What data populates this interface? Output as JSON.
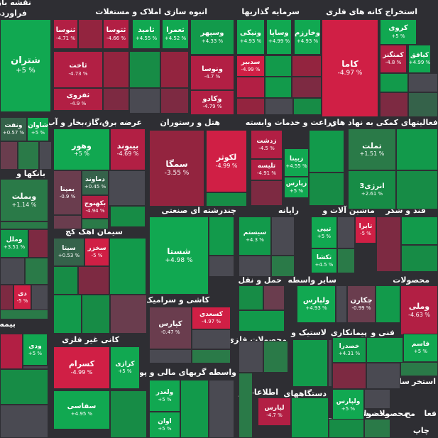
{
  "chart_data": {
    "type": "heatmap",
    "sector_titles": [
      "نقشه بازار",
      "فراورده",
      "استخراج کانه های فلزی",
      "سرمایه گذاریها",
      "انبوه سازی املاک و مستغلات",
      "فعالیتهای کمکی به نهاد های",
      "زراعت و خدمات وابسته",
      "هتل و رستوران",
      "عرضه برق،گاز،بخار و آب گرم",
      "بانکها و",
      "قند و شکر",
      "ماشین آلات و",
      "رایانه",
      "چندرشته ای صنعتی",
      "سیمان آهک گچ",
      "محصولات",
      "سایر واسطه",
      "حمل و نقل",
      "کاشی و سرامیک",
      "خرده",
      "فنی و",
      "پیمانکاری",
      "لاستیک و",
      "محصولات فلزی",
      "کانی غیر فلزی",
      "بیمه",
      "استخر",
      "سایر",
      "مخابرات",
      "وسایل",
      "دستگاههای",
      "اطلاعات و",
      "واسطه گریهای مالی و پولی",
      "محصولا",
      "استخراج",
      "چاپ",
      "فعا",
      "محصولات شیمیایی",
      "مح"
    ],
    "tiles": [
      {
        "symbol": "شتران",
        "change": "+5 %",
        "value": 5
      },
      {
        "symbol": "ثنوسا",
        "change": "-4.71 %",
        "value": -4.71
      },
      {
        "symbol": "ثتوسا",
        "change": "-4.66 %",
        "value": -4.66
      },
      {
        "symbol": "ثامید",
        "change": "+4.55 %",
        "value": 4.55
      },
      {
        "symbol": "ثعمرا",
        "change": "+4.52 %",
        "value": 4.52
      },
      {
        "symbol": "ثاخت",
        "change": "-4.73 %",
        "value": -4.73
      },
      {
        "symbol": "ثفزوی",
        "change": "-4.9 %",
        "value": -4.9
      },
      {
        "symbol": "وسپهر",
        "change": "+4.33 %",
        "value": 4.33
      },
      {
        "symbol": "ونیکی",
        "change": "+4.93 %",
        "value": 4.93
      },
      {
        "symbol": "وساپا",
        "change": "+4.99 %",
        "value": 4.99
      },
      {
        "symbol": "وخارزم",
        "change": "+4.93 %",
        "value": 4.93
      },
      {
        "symbol": "ونوسا",
        "change": "-4.7 %",
        "value": -4.7
      },
      {
        "symbol": "سدبیر",
        "change": "-4.99 %",
        "value": -4.99
      },
      {
        "symbol": "وکادو",
        "change": "-4.79 %",
        "value": -4.79
      },
      {
        "symbol": "کاما",
        "change": "-4.97 %",
        "value": -4.97
      },
      {
        "symbol": "کروی",
        "change": "+5 %",
        "value": 5
      },
      {
        "symbol": "کمنگنز",
        "change": "-4.8 %",
        "value": -4.8
      },
      {
        "symbol": "کیافق",
        "change": "+4.99 %",
        "value": 4.99
      },
      {
        "symbol": "شاوان",
        "change": "+5 %",
        "value": 5
      },
      {
        "symbol": "ونفت",
        "change": "+0.57 %",
        "value": 0.57
      },
      {
        "symbol": "وهور",
        "change": "+5 %",
        "value": 5
      },
      {
        "symbol": "بیبوند",
        "change": "-4.69 %",
        "value": -4.69
      },
      {
        "symbol": "سمگا",
        "change": "-3.55 %",
        "value": -3.55
      },
      {
        "symbol": "لکوثر",
        "change": "-4.99 %",
        "value": -4.99
      },
      {
        "symbol": "زدشت",
        "change": "-4.5 %",
        "value": -4.5
      },
      {
        "symbol": "تلیسه",
        "change": "-4.91 %",
        "value": -4.91
      },
      {
        "symbol": "زبینا",
        "change": "+4.55 %",
        "value": 4.55
      },
      {
        "symbol": "زپارس",
        "change": "+5 %",
        "value": 5
      },
      {
        "symbol": "تملت",
        "change": "+1.51 %",
        "value": 1.51
      },
      {
        "symbol": "انرژی3",
        "change": "+2.61 %",
        "value": 2.61
      },
      {
        "symbol": "دماوند",
        "change": "+0.45 %",
        "value": 0.45
      },
      {
        "symbol": "بمپنا",
        "change": "-0.9 %",
        "value": -0.9
      },
      {
        "symbol": "بکهنوج",
        "change": "-4.94 %",
        "value": -4.94
      },
      {
        "symbol": "وبملت",
        "change": "+1.14 %",
        "value": 1.14
      },
      {
        "symbol": "وملل",
        "change": "+3.51 %",
        "value": 3.51
      },
      {
        "symbol": "شستا",
        "change": "+4.98 %",
        "value": 4.98
      },
      {
        "symbol": "سیستم",
        "change": "+4.3 %",
        "value": 4.3
      },
      {
        "symbol": "تیپی",
        "change": "+5 %",
        "value": 5
      },
      {
        "symbol": "تایرا",
        "change": "-5 %",
        "value": -5
      },
      {
        "symbol": "تکشا",
        "change": "+4.5 %",
        "value": 4.5
      },
      {
        "symbol": "سیتا",
        "change": "+0.53 %",
        "value": 0.53
      },
      {
        "symbol": "سخزر",
        "change": "-5 %",
        "value": -5
      },
      {
        "symbol": "ولپارس",
        "change": "+4.93 %",
        "value": 4.93
      },
      {
        "symbol": "چکارن",
        "change": "-0.99 %",
        "value": -0.99
      },
      {
        "symbol": "وملی",
        "change": "-4.63 %",
        "value": -4.63
      },
      {
        "symbol": "دی",
        "change": "-5 %",
        "value": -5
      },
      {
        "symbol": "کپارس",
        "change": "-0.47 %",
        "value": -0.47
      },
      {
        "symbol": "کسعدی",
        "change": "-4.97 %",
        "value": -4.97
      },
      {
        "symbol": "ودی",
        "change": "+5 %",
        "value": 5
      },
      {
        "symbol": "کسرام",
        "change": "-4.99 %",
        "value": -4.99
      },
      {
        "symbol": "کرازی",
        "change": "+5 %",
        "value": 5
      },
      {
        "symbol": "سفاسی",
        "change": "+4.95 %",
        "value": 4.95
      },
      {
        "symbol": "خصدرا",
        "change": "+4.31 %",
        "value": 4.31
      },
      {
        "symbol": "قاسم",
        "change": "+5 %",
        "value": 5
      },
      {
        "symbol": "ولپارس",
        "change": "+5 %",
        "value": 5
      },
      {
        "symbol": "ولغدر",
        "change": "+5 %",
        "value": 5
      },
      {
        "symbol": "اوان",
        "change": "+5 %",
        "value": 5
      },
      {
        "symbol": "لپارس",
        "change": "-4.7 %",
        "value": -4.7
      }
    ],
    "colors": {
      "up_max": "#11a851",
      "down_max": "#d01f45",
      "flat": "#4a4a52",
      "background": "#2e2e33"
    }
  }
}
